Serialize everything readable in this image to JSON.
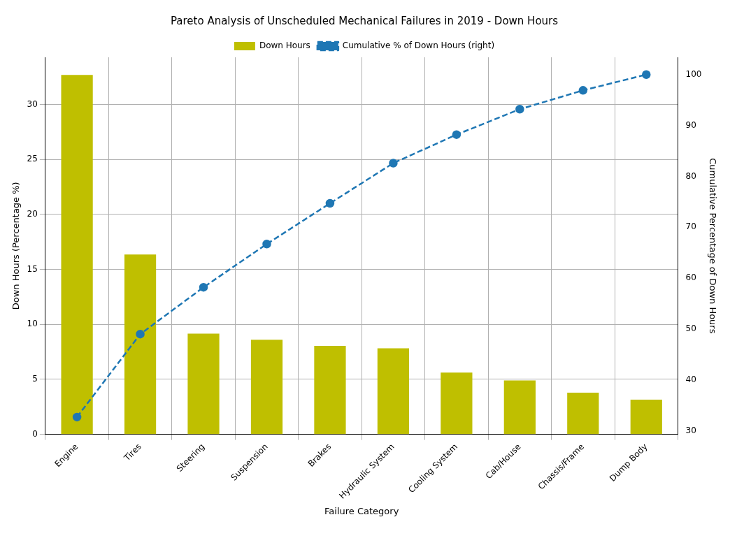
{
  "chart_data": {
    "type": "bar",
    "title": "Pareto Analysis of Unscheduled Mechanical Failures in 2019 - Down Hours",
    "xlabel": "Failure Category",
    "ylabel": "Down Hours (Percentage %)",
    "y2label": "Cumulative Percentage of Down Hours",
    "categories": [
      "Engine",
      "Tires",
      "Steering",
      "Suspension",
      "Brakes",
      "Hydraulic System",
      "Cooling System",
      "Cab/House",
      "Chassis/Frame",
      "Dump Body"
    ],
    "series": [
      {
        "name": "Down Hours",
        "color": "#bfbf00",
        "values": [
          32.7,
          16.36,
          9.16,
          8.6,
          8.05,
          7.82,
          5.62,
          4.9,
          3.79,
          3.16
        ]
      },
      {
        "name": "Cumulative % of Down Hours (right)",
        "type": "line",
        "axis": "y2",
        "color": "#1f77b4",
        "marker": "circle",
        "line_style": "dashed",
        "values": [
          32.7,
          49.0,
          58.2,
          66.7,
          74.7,
          82.6,
          88.2,
          93.2,
          96.9,
          100
        ]
      }
    ],
    "ylim": [
      0,
      34.3
    ],
    "yticks": [
      0,
      5,
      10,
      15,
      20,
      25,
      30
    ],
    "y2lim": [
      29.3,
      103.4
    ],
    "y2ticks": [
      30,
      40,
      50,
      60,
      70,
      80,
      90,
      100
    ],
    "grid": true,
    "legend": "top"
  }
}
